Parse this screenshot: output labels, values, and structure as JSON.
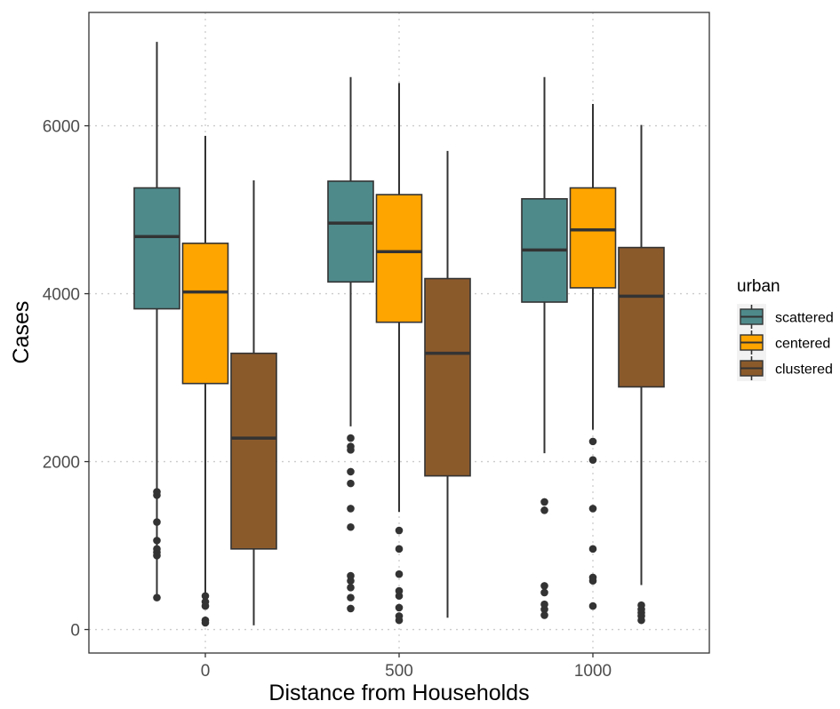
{
  "chart_data": {
    "type": "boxplot",
    "xlabel": "Distance from Households",
    "ylabel": "Cases",
    "ylim": [
      -280,
      7350
    ],
    "y_ticks": [
      0,
      2000,
      4000,
      6000
    ],
    "y_tick_labels": [
      "0",
      "2000",
      "4000",
      "6000"
    ],
    "categories": [
      "0",
      "500",
      "1000"
    ],
    "grid": true,
    "legend_position": "right",
    "legend": {
      "title": "urban",
      "entries": [
        "scattered",
        "centered",
        "clustered"
      ]
    },
    "series": [
      {
        "name": "scattered",
        "color": "#4f8a8b",
        "boxes": [
          {
            "category": "0",
            "whisker_low": 390,
            "q1": 3820,
            "median": 4680,
            "q3": 5260,
            "whisker_high": 7000,
            "outliers": [
              380,
              880,
              920,
              960,
              1060,
              1280,
              1600,
              1640
            ]
          },
          {
            "category": "500",
            "whisker_low": 2420,
            "q1": 4140,
            "median": 4840,
            "q3": 5340,
            "whisker_high": 6580,
            "outliers": [
              250,
              380,
              500,
              580,
              640,
              1220,
              1440,
              1740,
              1880,
              2140,
              2180,
              2280
            ]
          },
          {
            "category": "1000",
            "whisker_low": 2100,
            "q1": 3900,
            "median": 4520,
            "q3": 5130,
            "whisker_high": 6580,
            "outliers": [
              170,
              240,
              300,
              440,
              520,
              1420,
              1520
            ]
          }
        ]
      },
      {
        "name": "centered",
        "color": "#ffa500",
        "boxes": [
          {
            "category": "0",
            "whisker_low": 430,
            "q1": 2930,
            "median": 4020,
            "q3": 4600,
            "whisker_high": 5880,
            "outliers": [
              80,
              110,
              280,
              330,
              400
            ]
          },
          {
            "category": "500",
            "whisker_low": 1400,
            "q1": 3660,
            "median": 4500,
            "q3": 5180,
            "whisker_high": 6510,
            "outliers": [
              110,
              160,
              260,
              400,
              460,
              660,
              960,
              1180
            ]
          },
          {
            "category": "1000",
            "whisker_low": 2380,
            "q1": 4070,
            "median": 4760,
            "q3": 5260,
            "whisker_high": 6260,
            "outliers": [
              280,
              580,
              620,
              960,
              1440,
              2020,
              2240
            ]
          }
        ]
      },
      {
        "name": "clustered",
        "color": "#8b5a2b",
        "boxes": [
          {
            "category": "0",
            "whisker_low": 50,
            "q1": 960,
            "median": 2280,
            "q3": 3290,
            "whisker_high": 5350,
            "outliers": []
          },
          {
            "category": "500",
            "whisker_low": 140,
            "q1": 1830,
            "median": 3290,
            "q3": 4180,
            "whisker_high": 5700,
            "outliers": []
          },
          {
            "category": "1000",
            "whisker_low": 530,
            "q1": 2890,
            "median": 3970,
            "q3": 4550,
            "whisker_high": 6010,
            "outliers": [
              110,
              160,
              200,
              240,
              290
            ]
          }
        ]
      }
    ]
  }
}
